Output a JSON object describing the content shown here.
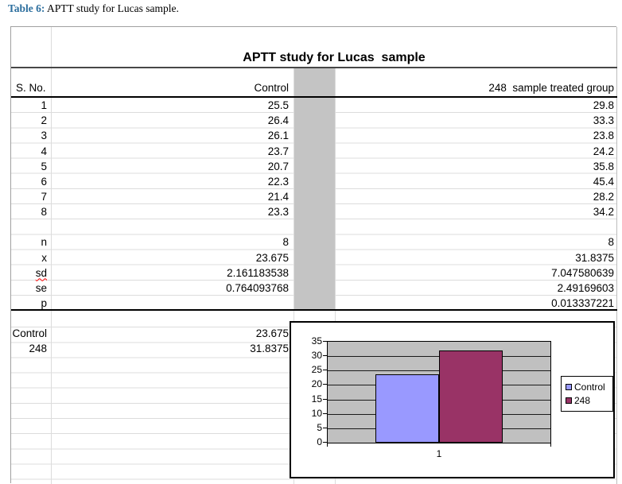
{
  "caption": {
    "label": "Table 6:",
    "text": " APTT study for Lucas sample."
  },
  "sheet": {
    "title": "APTT study for Lucas  sample",
    "columns": {
      "sno": "S. No.",
      "control": "Control",
      "treated": "248  sample treated group"
    },
    "data_rows": [
      {
        "sno": "1",
        "control": "25.5",
        "treated": "29.8"
      },
      {
        "sno": "2",
        "control": "26.4",
        "treated": "33.3"
      },
      {
        "sno": "3",
        "control": "26.1",
        "treated": "23.8"
      },
      {
        "sno": "4",
        "control": "23.7",
        "treated": "24.2"
      },
      {
        "sno": "5",
        "control": "20.7",
        "treated": "35.8"
      },
      {
        "sno": "6",
        "control": "22.3",
        "treated": "45.4"
      },
      {
        "sno": "7",
        "control": "21.4",
        "treated": "28.2"
      },
      {
        "sno": "8",
        "control": "23.3",
        "treated": "34.2"
      }
    ],
    "stats_rows": [
      {
        "label": "n",
        "control": "8",
        "treated": "8"
      },
      {
        "label": "x",
        "control": "23.675",
        "treated": "31.8375"
      },
      {
        "label": "sd",
        "control": "2.161183538",
        "treated": "7.047580639"
      },
      {
        "label": "se",
        "control": "0.764093768",
        "treated": "2.49169603"
      },
      {
        "label": "p",
        "control": "",
        "treated": "0.013337221"
      }
    ],
    "summary_rows": [
      {
        "label": "Control",
        "value": "23.675"
      },
      {
        "label": "248",
        "value": "31.8375"
      }
    ]
  },
  "chart_data": {
    "type": "bar",
    "categories": [
      "1"
    ],
    "series": [
      {
        "name": "Control",
        "values": [
          23.675
        ],
        "color": "#9999ff"
      },
      {
        "name": "248",
        "values": [
          31.8375
        ],
        "color": "#993366"
      }
    ],
    "title": "",
    "xlabel": "",
    "ylabel": "",
    "ylim": [
      0,
      35
    ],
    "yticks": [
      0,
      5,
      10,
      15,
      20,
      25,
      30,
      35
    ],
    "grid": true,
    "legend_position": "right",
    "plot_bg": "#c0c0c0"
  },
  "colors": {
    "caption_label": "#2d6f9e",
    "gridline": "#dcdcdc",
    "highlight_band": "#c4c4c4",
    "rule": "#000000",
    "bar_control": "#9999ff",
    "bar_248": "#993366"
  }
}
